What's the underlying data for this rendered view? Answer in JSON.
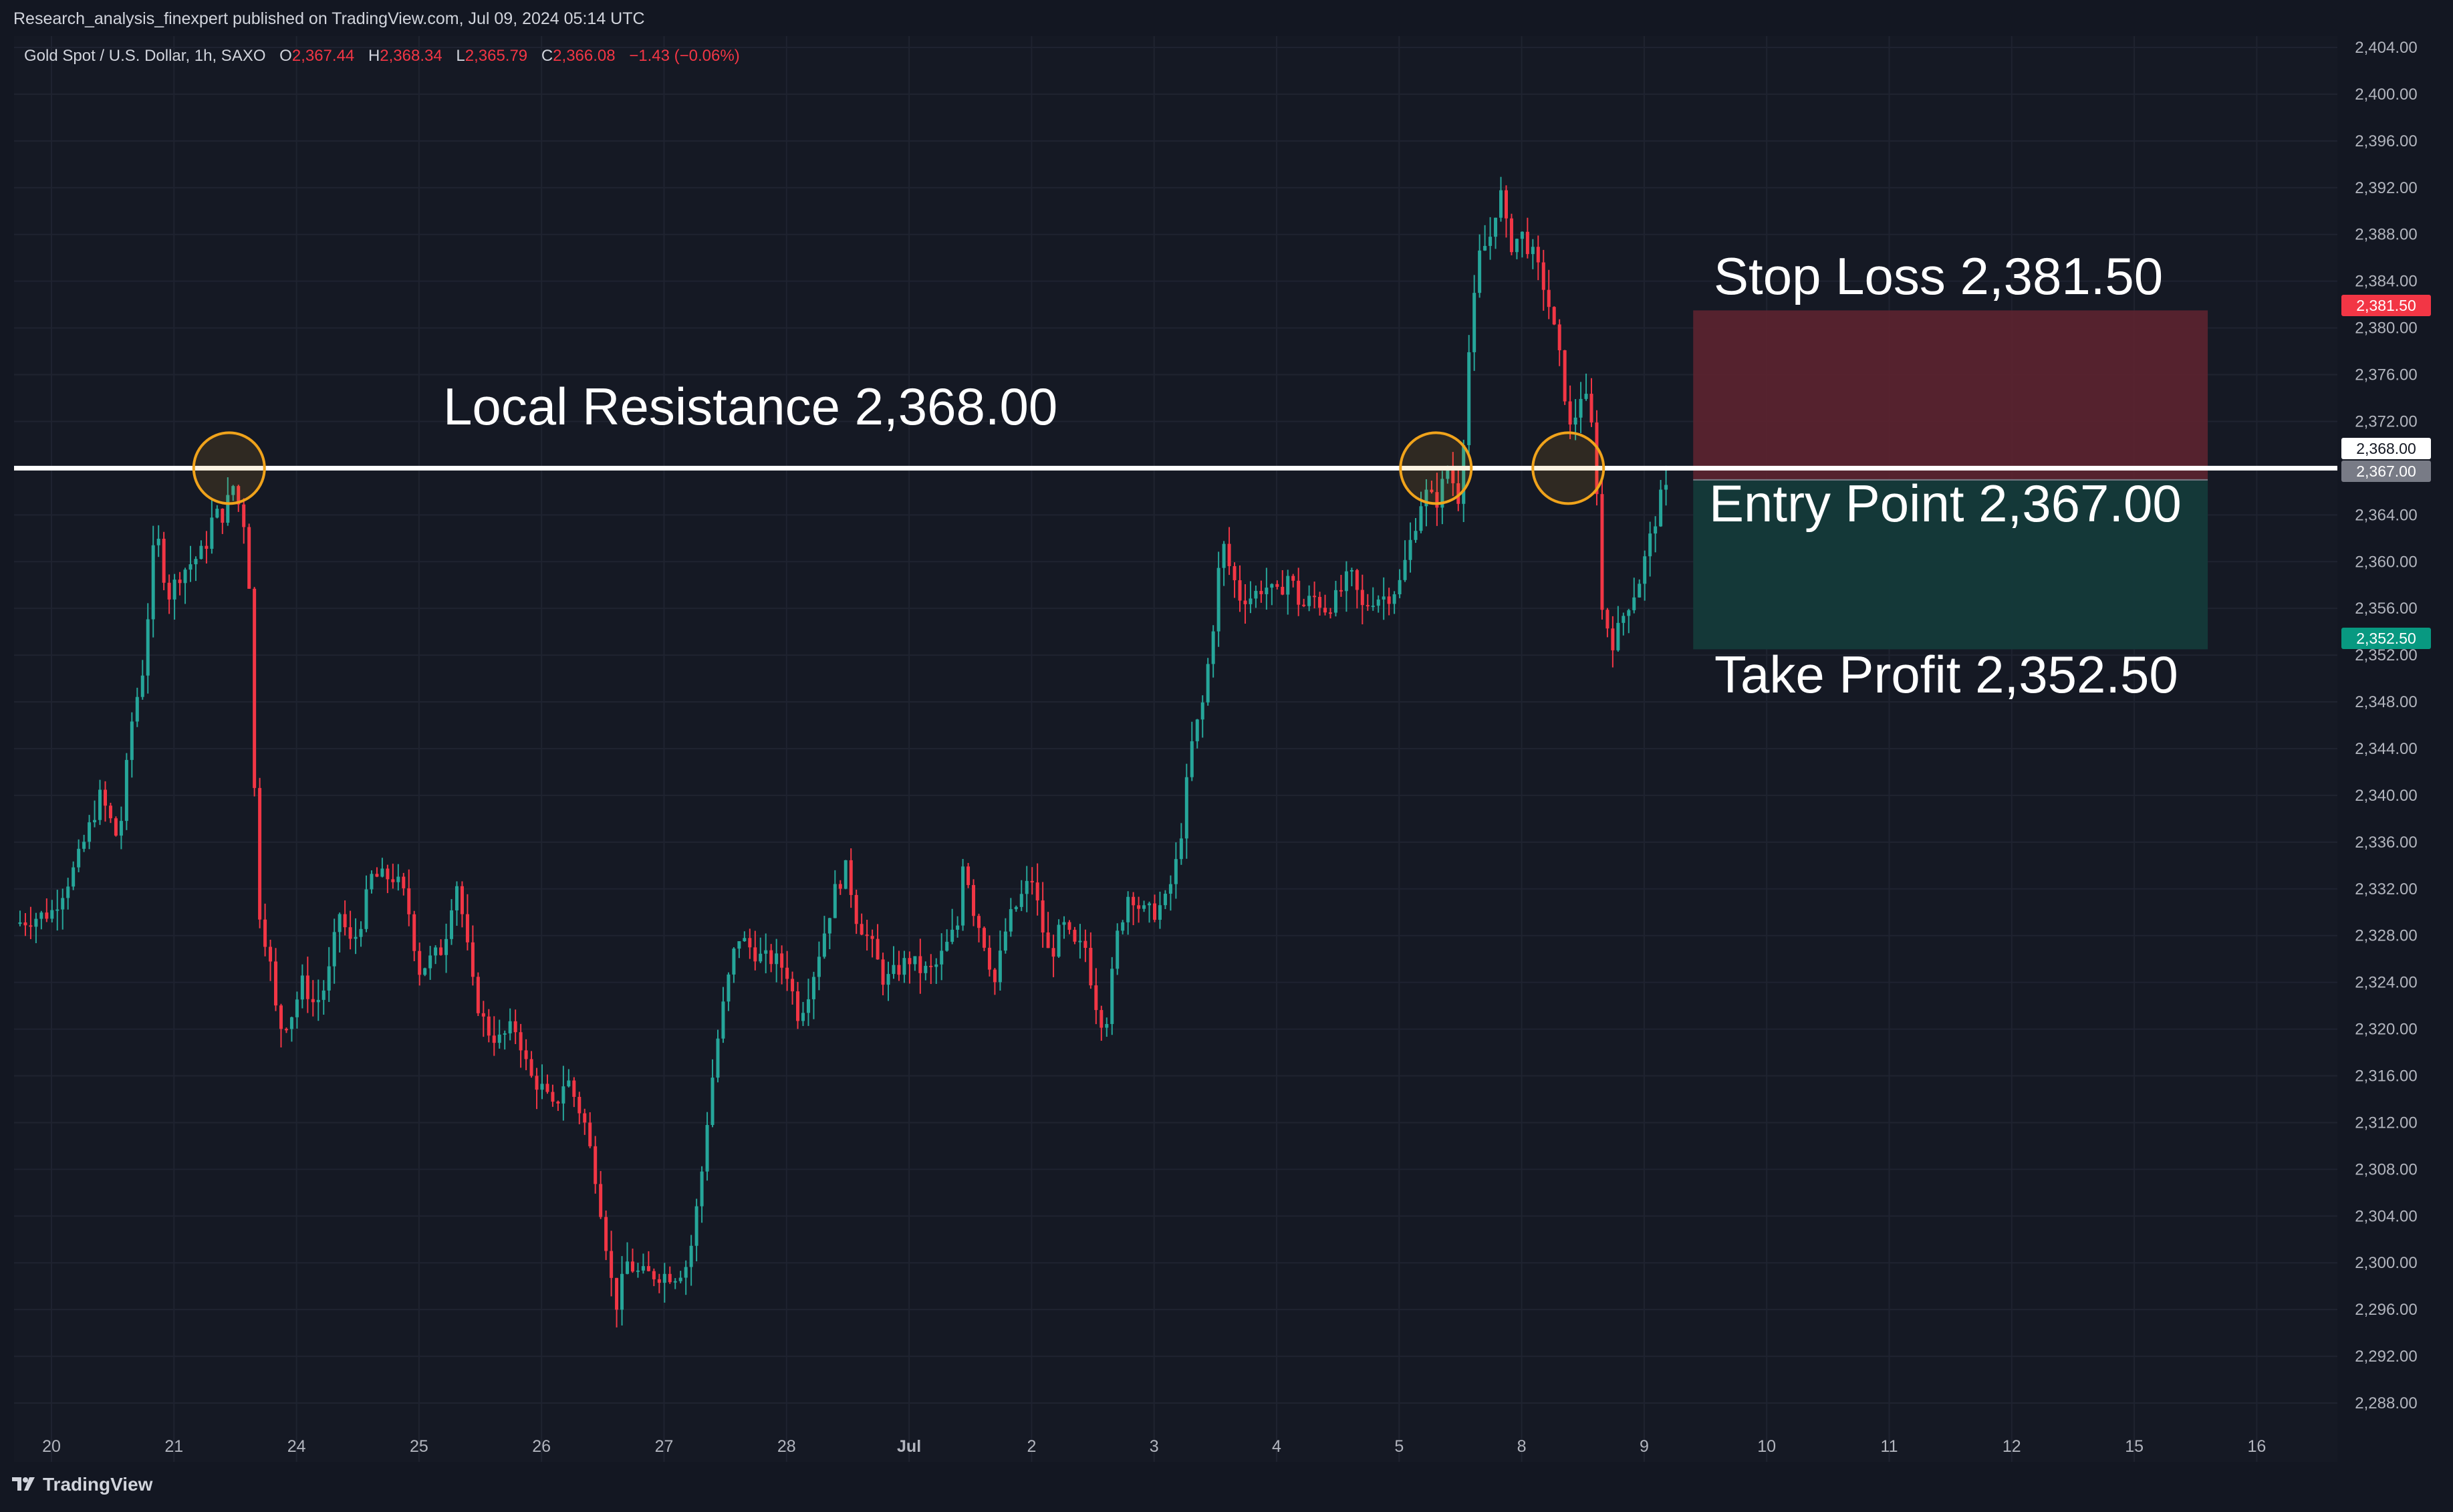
{
  "header": {
    "published_by": "Research_analysis_finexpert published on TradingView.com, Jul 09, 2024 05:14 UTC"
  },
  "legend": {
    "symbol": "Gold Spot / U.S. Dollar, 1h, SAXO",
    "open_label": "O",
    "open": "2,367.44",
    "high_label": "H",
    "high": "2,368.34",
    "low_label": "L",
    "low": "2,365.79",
    "close_label": "C",
    "close": "2,366.08",
    "change": "−1.43 (−0.06%)"
  },
  "annotations": {
    "resistance": "Local Resistance 2,368.00",
    "stop_loss": "Stop Loss 2,381.50",
    "entry": "Entry Point 2,367.00",
    "take_profit": "Take Profit 2,352.50"
  },
  "price_tags": {
    "stop_loss": "2,381.50",
    "resistance": "2,368.00",
    "entry": "2,367.00",
    "take_profit": "2,352.50"
  },
  "footer": {
    "brand": "TradingView",
    "brand_icon": "tradingview-logo-icon"
  },
  "colors": {
    "background": "#131722",
    "up": "#26a69a",
    "down": "#f23645",
    "grid": "#1f2330",
    "stop_zone": "#5c2430",
    "profit_zone": "#143a3a",
    "marker": "#f0a31b",
    "resistance_line": "#ffffff"
  },
  "chart_data": {
    "type": "candlestick",
    "symbol": "XAUUSD",
    "interval": "1h",
    "y_axis": {
      "min": 2286,
      "max": 2404,
      "ticks": [
        "2,288.00",
        "2,292.00",
        "2,296.00",
        "2,300.00",
        "2,304.00",
        "2,308.00",
        "2,312.00",
        "2,316.00",
        "2,320.00",
        "2,324.00",
        "2,328.00",
        "2,332.00",
        "2,336.00",
        "2,340.00",
        "2,344.00",
        "2,348.00",
        "2,352.00",
        "2,356.00",
        "2,360.00",
        "2,364.00",
        "2,368.00",
        "2,372.00",
        "2,376.00",
        "2,380.00",
        "2,384.00",
        "2,388.00",
        "2,392.00",
        "2,396.00",
        "2,400.00",
        "2,404.00"
      ]
    },
    "x_axis": {
      "day_index_range": [
        -0.3,
        18.9
      ],
      "ticks": [
        {
          "label": "20",
          "day": 0
        },
        {
          "label": "21",
          "day": 1
        },
        {
          "label": "24",
          "day": 2
        },
        {
          "label": "25",
          "day": 3
        },
        {
          "label": "26",
          "day": 4
        },
        {
          "label": "27",
          "day": 5
        },
        {
          "label": "28",
          "day": 6
        },
        {
          "label": "Jul",
          "day": 7
        },
        {
          "label": "2",
          "day": 8
        },
        {
          "label": "3",
          "day": 9
        },
        {
          "label": "4",
          "day": 10
        },
        {
          "label": "5",
          "day": 11
        },
        {
          "label": "8",
          "day": 12
        },
        {
          "label": "9",
          "day": 13
        },
        {
          "label": "10",
          "day": 14
        },
        {
          "label": "11",
          "day": 15
        },
        {
          "label": "12",
          "day": 16
        },
        {
          "label": "15",
          "day": 17
        },
        {
          "label": "16",
          "day": 18
        }
      ]
    },
    "close_path": [
      [
        -0.3,
        2329
      ],
      [
        0,
        2330
      ],
      [
        0.2,
        2334
      ],
      [
        0.4,
        2340
      ],
      [
        0.55,
        2336
      ],
      [
        0.65,
        2346
      ],
      [
        0.75,
        2351
      ],
      [
        0.85,
        2363
      ],
      [
        0.95,
        2357
      ],
      [
        1.05,
        2359
      ],
      [
        1.15,
        2360
      ],
      [
        1.25,
        2361
      ],
      [
        1.32,
        2364
      ],
      [
        1.4,
        2364
      ],
      [
        1.5,
        2367
      ],
      [
        1.55,
        2363
      ],
      [
        1.6,
        2364
      ],
      [
        1.65,
        2342
      ],
      [
        1.7,
        2330
      ],
      [
        1.78,
        2326
      ],
      [
        1.85,
        2320
      ],
      [
        1.95,
        2321
      ],
      [
        2.05,
        2324
      ],
      [
        2.15,
        2322
      ],
      [
        2.25,
        2324
      ],
      [
        2.35,
        2330
      ],
      [
        2.45,
        2327
      ],
      [
        2.55,
        2330
      ],
      [
        2.6,
        2333
      ],
      [
        2.7,
        2333
      ],
      [
        2.8,
        2333
      ],
      [
        2.9,
        2331
      ],
      [
        3.0,
        2325
      ],
      [
        3.1,
        2326
      ],
      [
        3.2,
        2327
      ],
      [
        3.3,
        2333
      ],
      [
        3.35,
        2330
      ],
      [
        3.45,
        2323
      ],
      [
        3.55,
        2320
      ],
      [
        3.65,
        2319
      ],
      [
        3.75,
        2320
      ],
      [
        3.8,
        2320
      ],
      [
        3.9,
        2316
      ],
      [
        4.0,
        2315
      ],
      [
        4.1,
        2313
      ],
      [
        4.2,
        2316
      ],
      [
        4.35,
        2312
      ],
      [
        4.45,
        2307
      ],
      [
        4.55,
        2300
      ],
      [
        4.6,
        2296
      ],
      [
        4.7,
        2300
      ],
      [
        4.8,
        2299
      ],
      [
        4.9,
        2299
      ],
      [
        5.0,
        2299
      ],
      [
        5.1,
        2299
      ],
      [
        5.2,
        2300
      ],
      [
        5.3,
        2307
      ],
      [
        5.35,
        2312
      ],
      [
        5.42,
        2318
      ],
      [
        5.5,
        2323
      ],
      [
        5.6,
        2328
      ],
      [
        5.7,
        2327
      ],
      [
        5.8,
        2326
      ],
      [
        5.9,
        2326
      ],
      [
        6.0,
        2325
      ],
      [
        6.1,
        2321
      ],
      [
        6.2,
        2324
      ],
      [
        6.3,
        2328
      ],
      [
        6.4,
        2332
      ],
      [
        6.5,
        2334
      ],
      [
        6.55,
        2330
      ],
      [
        6.6,
        2329
      ],
      [
        6.7,
        2327
      ],
      [
        6.8,
        2324
      ],
      [
        6.9,
        2325
      ],
      [
        7.0,
        2326
      ],
      [
        7.1,
        2325
      ],
      [
        7.2,
        2325
      ],
      [
        7.3,
        2327
      ],
      [
        7.4,
        2329
      ],
      [
        7.45,
        2336
      ],
      [
        7.5,
        2331
      ],
      [
        7.6,
        2328
      ],
      [
        7.7,
        2324
      ],
      [
        7.8,
        2329
      ],
      [
        7.9,
        2331
      ],
      [
        8.0,
        2333
      ],
      [
        8.1,
        2328
      ],
      [
        8.15,
        2326
      ],
      [
        8.25,
        2329
      ],
      [
        8.35,
        2327
      ],
      [
        8.45,
        2327
      ],
      [
        8.5,
        2323
      ],
      [
        8.6,
        2320
      ],
      [
        8.7,
        2328
      ],
      [
        8.8,
        2332
      ],
      [
        8.9,
        2330
      ],
      [
        9.0,
        2330
      ],
      [
        9.1,
        2331
      ],
      [
        9.2,
        2335
      ],
      [
        9.3,
        2344
      ],
      [
        9.4,
        2348
      ],
      [
        9.5,
        2356
      ],
      [
        9.55,
        2362
      ],
      [
        9.6,
        2360
      ],
      [
        9.7,
        2357
      ],
      [
        9.8,
        2357
      ],
      [
        9.9,
        2358
      ],
      [
        10.0,
        2357
      ],
      [
        10.1,
        2359
      ],
      [
        10.2,
        2356
      ],
      [
        10.3,
        2357
      ],
      [
        10.4,
        2356
      ],
      [
        10.5,
        2357
      ],
      [
        10.6,
        2359
      ],
      [
        10.7,
        2356
      ],
      [
        10.8,
        2357
      ],
      [
        10.9,
        2357
      ],
      [
        11.0,
        2358
      ],
      [
        11.1,
        2362
      ],
      [
        11.2,
        2366
      ],
      [
        11.3,
        2365
      ],
      [
        11.4,
        2368
      ],
      [
        11.5,
        2365
      ],
      [
        11.55,
        2376
      ],
      [
        11.65,
        2386
      ],
      [
        11.75,
        2388
      ],
      [
        11.82,
        2392
      ],
      [
        11.9,
        2387
      ],
      [
        12.0,
        2388
      ],
      [
        12.1,
        2386
      ],
      [
        12.2,
        2383
      ],
      [
        12.3,
        2378
      ],
      [
        12.4,
        2371
      ],
      [
        12.5,
        2375
      ],
      [
        12.6,
        2370
      ],
      [
        12.65,
        2356
      ],
      [
        12.75,
        2353
      ],
      [
        12.85,
        2356
      ],
      [
        12.95,
        2358
      ],
      [
        13.05,
        2362
      ],
      [
        13.15,
        2366
      ],
      [
        13.22,
        2366
      ]
    ],
    "levels": {
      "resistance": 2368.0,
      "stop_loss": 2381.5,
      "entry": 2367.0,
      "take_profit": 2352.5
    },
    "position_box": {
      "day_start": 13.4,
      "day_end": 17.6
    },
    "markers": [
      {
        "day": 1.45,
        "price": 2368
      },
      {
        "day": 11.3,
        "price": 2368
      },
      {
        "day": 12.38,
        "price": 2368
      }
    ]
  }
}
